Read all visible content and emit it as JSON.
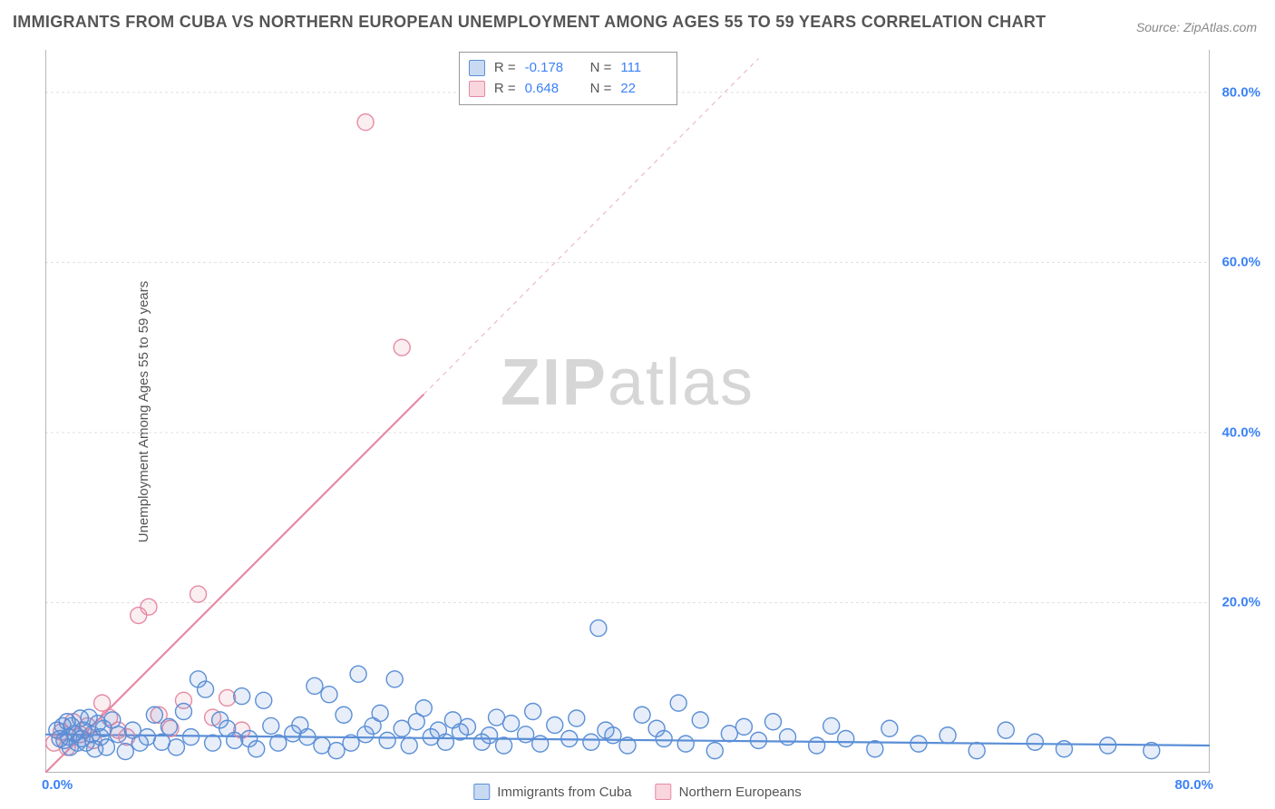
{
  "title": "IMMIGRANTS FROM CUBA VS NORTHERN EUROPEAN UNEMPLOYMENT AMONG AGES 55 TO 59 YEARS CORRELATION CHART",
  "source": "Source: ZipAtlas.com",
  "watermark_zip": "ZIP",
  "watermark_atlas": "atlas",
  "chart": {
    "type": "scatter",
    "ylabel": "Unemployment Among Ages 55 to 59 years",
    "xlim": [
      0,
      80
    ],
    "ylim": [
      0,
      85
    ],
    "xtick_origin": "0.0%",
    "xtick_max": "80.0%",
    "yticks": [
      {
        "v": 20,
        "label": "20.0%"
      },
      {
        "v": 40,
        "label": "40.0%"
      },
      {
        "v": 60,
        "label": "60.0%"
      },
      {
        "v": 80,
        "label": "80.0%"
      }
    ],
    "background_color": "#ffffff",
    "grid_color": "#e0e0e0",
    "axis_color": "#888888",
    "marker_radius": 9,
    "marker_fill_opacity": 0.15,
    "marker_stroke_width": 1.4,
    "line_width": 2.2,
    "series_a": {
      "label": "Immigrants from Cuba",
      "color": "#5b8fd6",
      "swatch_fill": "#c8daf2",
      "swatch_border": "#5b8fd6",
      "R_label": "R  =",
      "R": "-0.178",
      "N_label": "N  =",
      "N": "111",
      "regression": {
        "x1": 0,
        "y1": 4.5,
        "x2": 80,
        "y2": 3.2
      },
      "points": [
        [
          0.8,
          5
        ],
        [
          1,
          4
        ],
        [
          1.2,
          5.5
        ],
        [
          1.3,
          3.8
        ],
        [
          1.5,
          6
        ],
        [
          1.6,
          4.2
        ],
        [
          1.7,
          3
        ],
        [
          1.8,
          5.5
        ],
        [
          2,
          4.6
        ],
        [
          2.2,
          3.5
        ],
        [
          2.4,
          6.4
        ],
        [
          2.5,
          4
        ],
        [
          2.6,
          5
        ],
        [
          2.8,
          3.5
        ],
        [
          3,
          6.5
        ],
        [
          3.2,
          4.5
        ],
        [
          3.4,
          2.8
        ],
        [
          3.6,
          5.8
        ],
        [
          3.8,
          4.2
        ],
        [
          4,
          5.2
        ],
        [
          4.2,
          3
        ],
        [
          4.6,
          6.2
        ],
        [
          5,
          4.5
        ],
        [
          5.5,
          2.5
        ],
        [
          6,
          5
        ],
        [
          6.5,
          3.5
        ],
        [
          7,
          4.2
        ],
        [
          7.5,
          6.8
        ],
        [
          8,
          3.6
        ],
        [
          8.5,
          5.4
        ],
        [
          9,
          3
        ],
        [
          9.5,
          7.2
        ],
        [
          10,
          4.2
        ],
        [
          10.5,
          11
        ],
        [
          11,
          9.8
        ],
        [
          11.5,
          3.5
        ],
        [
          12,
          6.2
        ],
        [
          12.5,
          5.2
        ],
        [
          13,
          3.8
        ],
        [
          13.5,
          9
        ],
        [
          14,
          4
        ],
        [
          14.5,
          2.8
        ],
        [
          15,
          8.5
        ],
        [
          15.5,
          5.5
        ],
        [
          16,
          3.5
        ],
        [
          17,
          4.6
        ],
        [
          17.5,
          5.6
        ],
        [
          18,
          4.2
        ],
        [
          18.5,
          10.2
        ],
        [
          19,
          3.2
        ],
        [
          19.5,
          9.2
        ],
        [
          20,
          2.6
        ],
        [
          20.5,
          6.8
        ],
        [
          21,
          3.5
        ],
        [
          21.5,
          11.6
        ],
        [
          22,
          4.5
        ],
        [
          22.5,
          5.5
        ],
        [
          23,
          7
        ],
        [
          23.5,
          3.8
        ],
        [
          24,
          11
        ],
        [
          24.5,
          5.2
        ],
        [
          25,
          3.2
        ],
        [
          25.5,
          6
        ],
        [
          26,
          7.6
        ],
        [
          26.5,
          4.2
        ],
        [
          27,
          5
        ],
        [
          27.5,
          3.6
        ],
        [
          28,
          6.2
        ],
        [
          28.5,
          4.8
        ],
        [
          29,
          5.4
        ],
        [
          30,
          3.6
        ],
        [
          30.5,
          4.4
        ],
        [
          31,
          6.5
        ],
        [
          31.5,
          3.2
        ],
        [
          32,
          5.8
        ],
        [
          33,
          4.5
        ],
        [
          33.5,
          7.2
        ],
        [
          34,
          3.4
        ],
        [
          35,
          5.6
        ],
        [
          36,
          4
        ],
        [
          36.5,
          6.4
        ],
        [
          37.5,
          3.6
        ],
        [
          38,
          17
        ],
        [
          38.5,
          5
        ],
        [
          39,
          4.4
        ],
        [
          40,
          3.2
        ],
        [
          41,
          6.8
        ],
        [
          42,
          5.2
        ],
        [
          42.5,
          4
        ],
        [
          43.5,
          8.2
        ],
        [
          44,
          3.4
        ],
        [
          45,
          6.2
        ],
        [
          46,
          2.6
        ],
        [
          47,
          4.6
        ],
        [
          48,
          5.4
        ],
        [
          49,
          3.8
        ],
        [
          50,
          6
        ],
        [
          51,
          4.2
        ],
        [
          53,
          3.2
        ],
        [
          54,
          5.5
        ],
        [
          55,
          4
        ],
        [
          57,
          2.8
        ],
        [
          58,
          5.2
        ],
        [
          60,
          3.4
        ],
        [
          62,
          4.4
        ],
        [
          64,
          2.6
        ],
        [
          66,
          5
        ],
        [
          68,
          3.6
        ],
        [
          70,
          2.8
        ],
        [
          73,
          3.2
        ],
        [
          76,
          2.6
        ]
      ]
    },
    "series_b": {
      "label": "Northern Europeans",
      "color": "#e68aa4",
      "swatch_fill": "#f9d5de",
      "swatch_border": "#e68aa4",
      "R_label": "R  =",
      "R": "0.648",
      "N_label": "N  =",
      "N": "22",
      "regression_solid": {
        "x1": 0,
        "y1": 0,
        "x2": 26,
        "y2": 44.5
      },
      "regression_dash": {
        "x1": 26,
        "y1": 44.5,
        "x2": 49,
        "y2": 84
      },
      "points": [
        [
          0.6,
          3.5
        ],
        [
          1.1,
          4.8
        ],
        [
          1.5,
          3
        ],
        [
          1.9,
          6
        ],
        [
          2.4,
          4.5
        ],
        [
          2.9,
          5.5
        ],
        [
          3.3,
          3.8
        ],
        [
          3.9,
          8.2
        ],
        [
          4.4,
          6.5
        ],
        [
          5,
          5
        ],
        [
          5.6,
          4.2
        ],
        [
          6.4,
          18.5
        ],
        [
          7.1,
          19.5
        ],
        [
          7.8,
          6.8
        ],
        [
          8.6,
          5.2
        ],
        [
          9.5,
          8.5
        ],
        [
          10.5,
          21
        ],
        [
          11.5,
          6.5
        ],
        [
          12.5,
          8.8
        ],
        [
          13.5,
          5
        ],
        [
          22,
          76.5
        ],
        [
          24.5,
          50
        ]
      ]
    }
  },
  "bottom_legend": {
    "items": [
      {
        "label": "Immigrants from Cuba"
      },
      {
        "label": "Northern Europeans"
      }
    ]
  }
}
